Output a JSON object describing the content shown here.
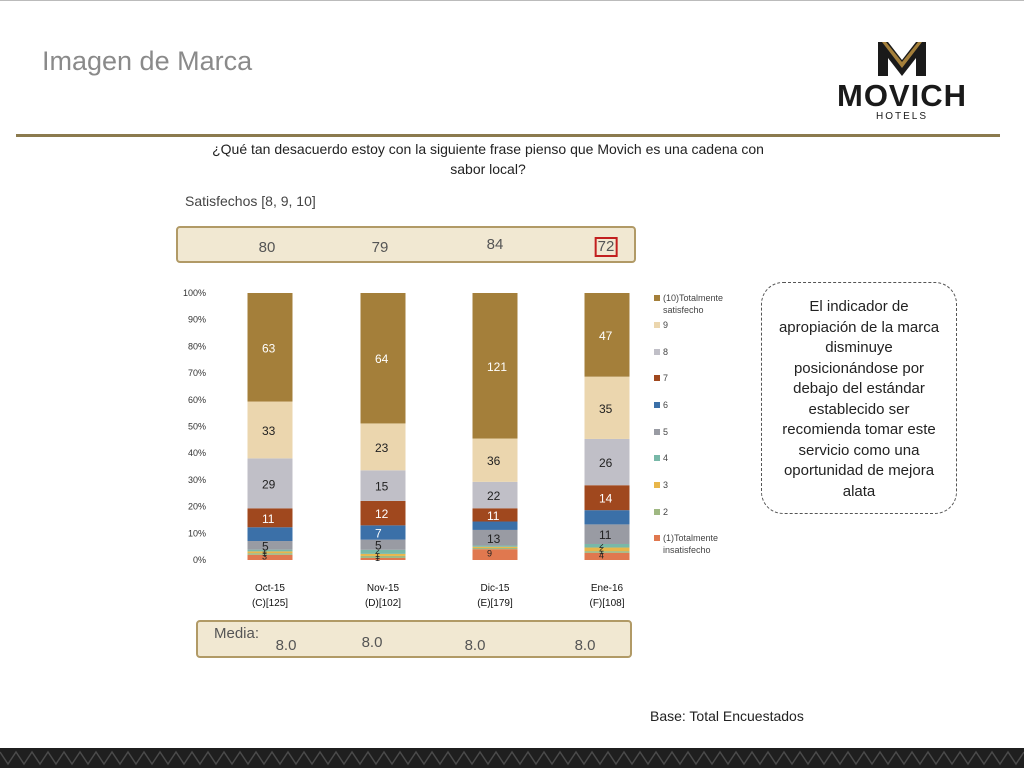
{
  "slide": {
    "title": "Imagen de Marca",
    "question": "¿Qué tan desacuerdo estoy con la siguiente frase pienso que Movich es una cadena con sabor local?",
    "satisfechos_label": "Satisfechos [8, 9, 10]",
    "media_label": "Media:",
    "callout": "El indicador de apropiación de la marca disminuye posicionándose por debajo del estándar establecido ser recomienda tomar este servicio como una oportunidad de mejora alata",
    "base_note": "Base: Total Encuestados"
  },
  "logo": {
    "brand": "MOVICH",
    "sub": "HOTELS"
  },
  "colors": {
    "accent": "#8b7a4e",
    "band_fill": "#f1e8d2",
    "band_border": "#b19a66",
    "highlight_box": "#c21f1f",
    "footer": "#1f1f1f"
  },
  "chart_data": {
    "type": "bar",
    "stacked": "percent",
    "categories": [
      "Oct-15",
      "Nov-15",
      "Dic-15",
      "Ene-16"
    ],
    "category_bases": [
      "(C)[125]",
      "(D)[102]",
      "(E)[179]",
      "(F)[108]"
    ],
    "yticks": [
      "0%",
      "10%",
      "20%",
      "30%",
      "40%",
      "50%",
      "60%",
      "70%",
      "80%",
      "90%",
      "100%"
    ],
    "ylim": [
      0,
      100
    ],
    "legend_position": "right",
    "series": [
      {
        "name": "(1)Totalmente insatisfecho",
        "color": "#e0784f",
        "values": [
          3,
          1,
          9,
          4
        ]
      },
      {
        "name": "2",
        "color": "#9fb882",
        "values": [
          1,
          1,
          1,
          1
        ]
      },
      {
        "name": "3",
        "color": "#e8b64a",
        "values": [
          1,
          1,
          1,
          2
        ]
      },
      {
        "name": "4",
        "color": "#78b8a8",
        "values": [
          1,
          2,
          1,
          2
        ]
      },
      {
        "name": "5",
        "color": "#999ba3",
        "values": [
          5,
          5,
          13,
          11
        ]
      },
      {
        "name": "6",
        "color": "#3b70a8",
        "values": [
          8,
          7,
          7,
          8
        ]
      },
      {
        "name": "7",
        "color": "#a0481e",
        "values": [
          11,
          12,
          11,
          14
        ]
      },
      {
        "name": "8",
        "color": "#c0bfc7",
        "values": [
          29,
          15,
          22,
          26
        ]
      },
      {
        "name": "9",
        "color": "#ebd6ae",
        "values": [
          33,
          23,
          36,
          35
        ]
      },
      {
        "name": "(10)Totalmente satisfecho",
        "color": "#a47f3a",
        "values": [
          63,
          64,
          121,
          47
        ]
      }
    ],
    "data_labels": [
      [
        "3",
        "1",
        "1",
        "1",
        "5",
        "",
        "11",
        "29",
        "33",
        "63"
      ],
      [
        "1",
        "1",
        "1",
        "2",
        "5",
        "7",
        "12",
        "15",
        "23",
        "64"
      ],
      [
        "9",
        "",
        "",
        "",
        "13",
        "",
        "11",
        "22",
        "36",
        "121"
      ],
      [
        "4",
        "1",
        "2",
        "2",
        "11",
        "",
        "14",
        "26",
        "35",
        "47"
      ]
    ],
    "satisfechos": [
      "80",
      "79",
      "84",
      "72"
    ],
    "satisfechos_highlight_index": 3,
    "media": [
      "8.0",
      "8.0",
      "8.0",
      "8.0"
    ]
  }
}
